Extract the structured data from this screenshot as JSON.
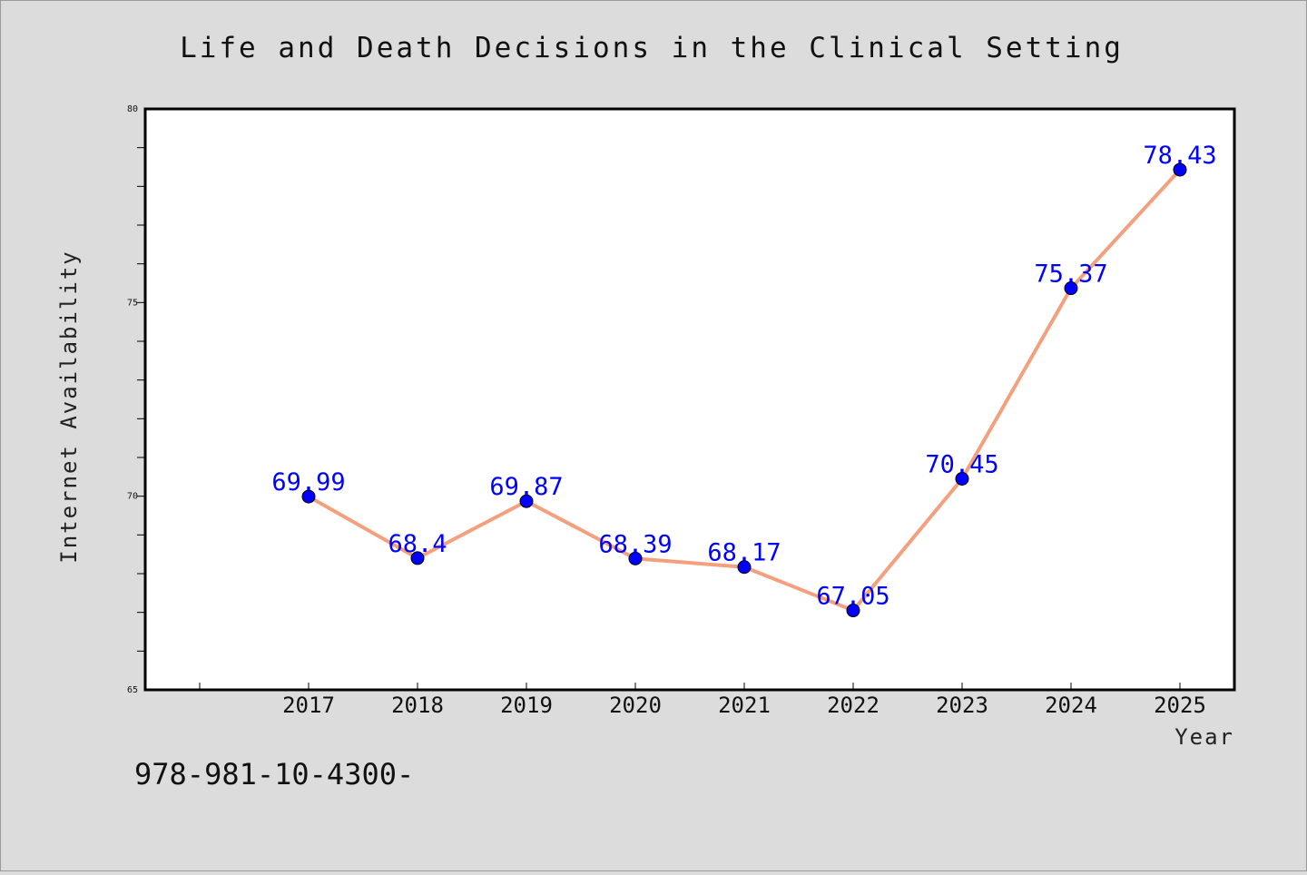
{
  "chart_data": {
    "type": "line",
    "title": "Life and Death Decisions in the Clinical Setting",
    "xlabel": "Year",
    "ylabel": "Internet Availability",
    "x": [
      "2017",
      "2018",
      "2019",
      "2020",
      "2021",
      "2022",
      "2023",
      "2024",
      "2025"
    ],
    "series": [
      {
        "values": [
          69.99,
          68.4,
          69.87,
          68.39,
          68.17,
          67.05,
          70.45,
          75.37,
          78.43
        ]
      }
    ],
    "data_labels": [
      "69.99",
      "68.4",
      "69.87",
      "68.39",
      "68.17",
      "67.05",
      "70.45",
      "75.37",
      "78.43"
    ],
    "ylim": [
      65,
      80
    ],
    "ytick_labels": [
      "65",
      "70",
      "75",
      "80"
    ],
    "grid": false,
    "line_color": "#f4a07e",
    "marker_color": "#0000ff",
    "label_color": "#0000ff",
    "background_color": "#dcdcdc",
    "plot_background": "#ffffff"
  },
  "footer_text": "978-981-10-4300-"
}
